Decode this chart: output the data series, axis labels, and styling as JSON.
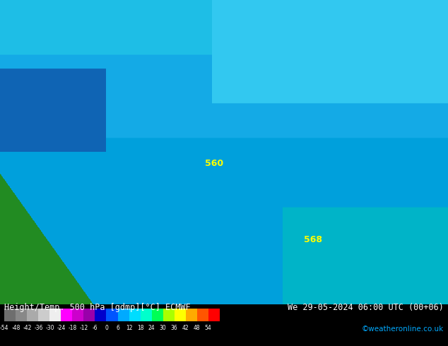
{
  "title_left": "Height/Temp. 500 hPa [gdmp][°C] ECMWF",
  "title_right": "We 29-05-2024 06:00 UTC (00+06)",
  "credit": "©weatheronline.co.uk",
  "colorbar_ticks": [
    -54,
    -48,
    -42,
    -36,
    -30,
    -24,
    -18,
    -12,
    -6,
    0,
    6,
    12,
    18,
    24,
    30,
    36,
    42,
    48,
    54
  ],
  "colorbar_colors": [
    "#6e6e6e",
    "#888888",
    "#aaaaaa",
    "#cccccc",
    "#eeeeee",
    "#ff00ff",
    "#cc00cc",
    "#9900aa",
    "#0000cc",
    "#0055ff",
    "#00aaff",
    "#00ddff",
    "#00ffcc",
    "#00ff55",
    "#aaff00",
    "#ffff00",
    "#ffaa00",
    "#ff5500",
    "#ff0000"
  ],
  "bg_color": "#000000",
  "map_colors": {
    "cyan_blue": "#00bfff",
    "green": "#228B22",
    "dark_blue": "#1e3a8a"
  },
  "fig_width": 6.34,
  "fig_height": 4.9,
  "dpi": 100
}
